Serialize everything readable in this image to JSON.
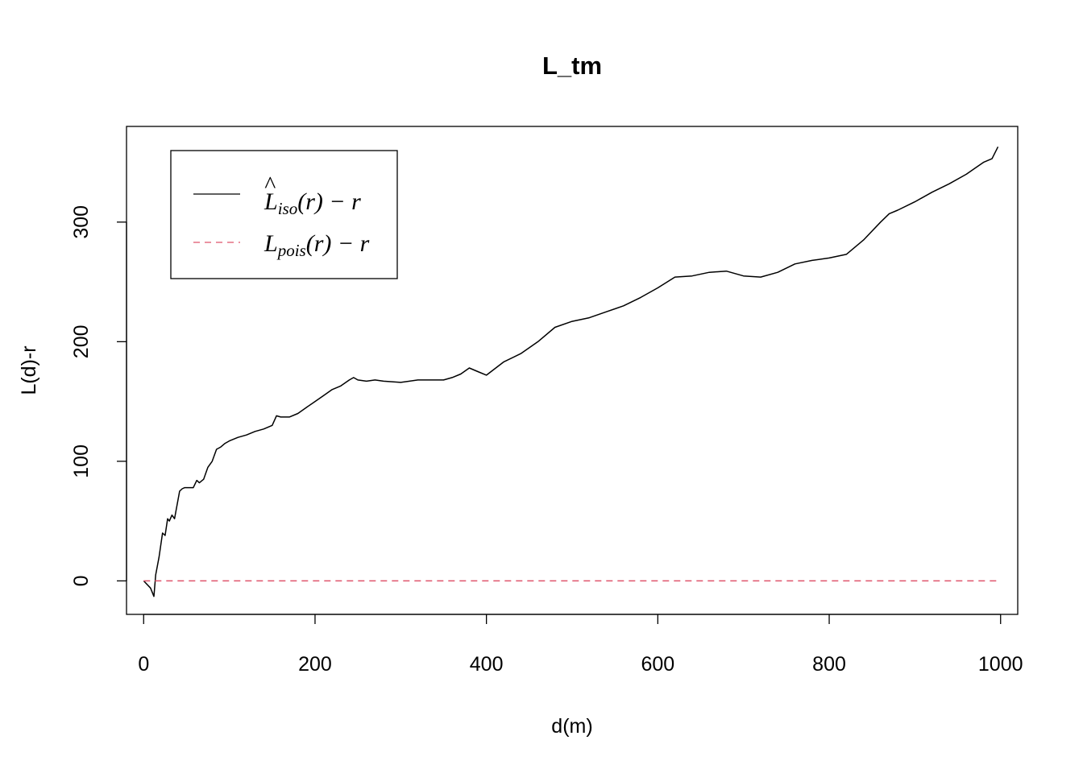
{
  "chart_data": {
    "type": "line",
    "title": "L_tm",
    "xlabel": "d(m)",
    "ylabel": "L(d)-r",
    "xlim": [
      -20,
      1020
    ],
    "ylim": [
      -28,
      380
    ],
    "xticks": [
      0,
      200,
      400,
      600,
      800,
      1000
    ],
    "yticks": [
      0,
      100,
      200,
      300
    ],
    "grid": false,
    "legend_position": "top-left",
    "series": [
      {
        "name": "L̂_iso(r) − r",
        "legend_main": "L",
        "legend_hat": "^",
        "legend_sub": "iso",
        "legend_rest": "(r) − r",
        "color": "#000000",
        "dash": "solid",
        "x": [
          0,
          8,
          12,
          14,
          18,
          22,
          25,
          28,
          30,
          33,
          36,
          42,
          45,
          48,
          52,
          58,
          62,
          65,
          70,
          75,
          80,
          85,
          90,
          95,
          100,
          110,
          120,
          130,
          140,
          150,
          155,
          160,
          170,
          180,
          190,
          200,
          210,
          220,
          230,
          240,
          245,
          250,
          260,
          270,
          280,
          300,
          320,
          340,
          350,
          360,
          370,
          380,
          390,
          400,
          420,
          440,
          460,
          480,
          500,
          520,
          540,
          560,
          580,
          600,
          620,
          640,
          660,
          680,
          700,
          720,
          740,
          760,
          780,
          800,
          820,
          840,
          860,
          870,
          880,
          900,
          920,
          940,
          960,
          970,
          980,
          990,
          997
        ],
        "y": [
          0,
          -6,
          -13,
          5,
          20,
          40,
          38,
          52,
          50,
          55,
          52,
          75,
          77,
          78,
          78,
          78,
          84,
          82,
          85,
          95,
          100,
          110,
          112,
          115,
          117,
          120,
          122,
          125,
          127,
          130,
          138,
          137,
          137,
          140,
          145,
          150,
          155,
          160,
          163,
          168,
          170,
          168,
          167,
          168,
          167,
          166,
          168,
          168,
          168,
          170,
          173,
          178,
          175,
          172,
          183,
          190,
          200,
          212,
          217,
          220,
          225,
          230,
          237,
          245,
          254,
          255,
          258,
          259,
          255,
          254,
          258,
          265,
          268,
          270,
          273,
          285,
          300,
          307,
          310,
          317,
          325,
          332,
          340,
          345,
          350,
          353,
          363
        ]
      },
      {
        "name": "L_pois(r) − r",
        "legend_main": "L",
        "legend_sub": "pois",
        "legend_rest": "(r) − r",
        "color": "#DF536B",
        "dash": "dashed",
        "x": [
          0,
          997
        ],
        "y": [
          0,
          0
        ]
      }
    ]
  }
}
